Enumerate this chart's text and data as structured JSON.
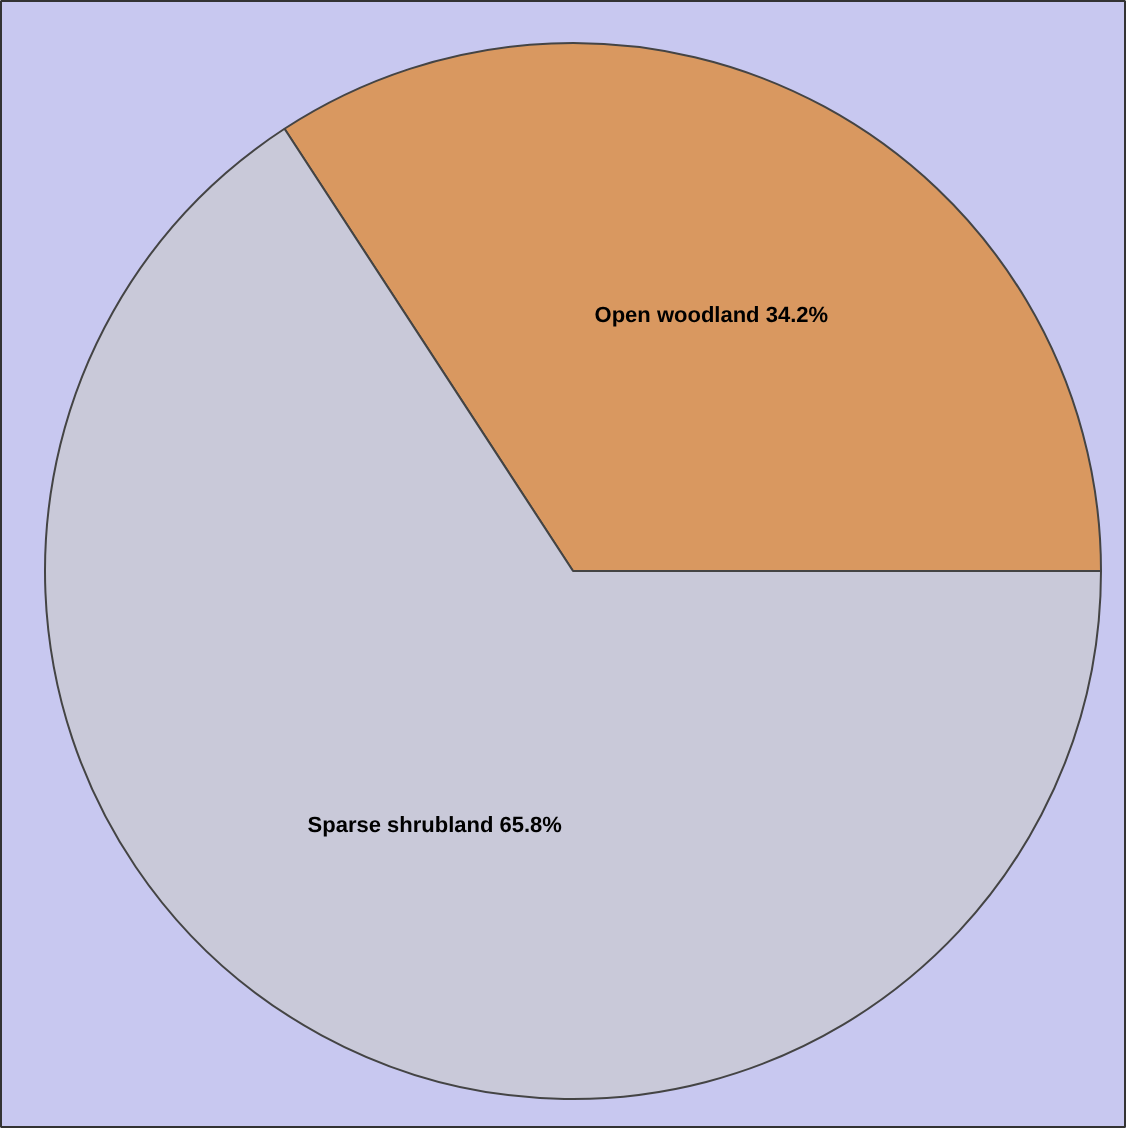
{
  "chart_data": {
    "type": "pie",
    "categories": [
      "Open woodland",
      "Sparse shrubland"
    ],
    "values": [
      34.2,
      65.8
    ],
    "colors": [
      "#d99860",
      "#c9c9d9"
    ],
    "value_labels": [
      "34.2%",
      "65.8%"
    ],
    "legend": false
  }
}
